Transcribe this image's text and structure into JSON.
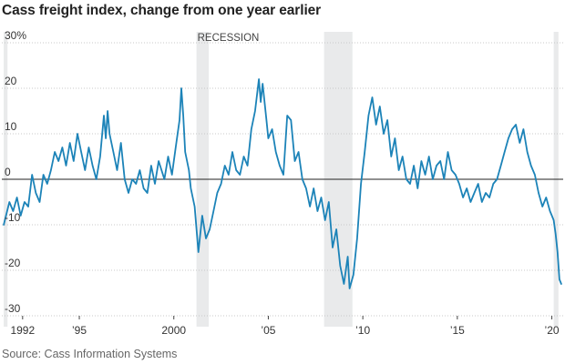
{
  "chart_data": {
    "type": "line",
    "title": "Cass freight index, change from one year earlier",
    "source": "Source: Cass Information Systems",
    "annotation": "RECESSION",
    "xlabel": "",
    "ylabel": "",
    "xlim": [
      1990.9,
      2020.6
    ],
    "ylim": [
      -30,
      30
    ],
    "y_ticks": [
      {
        "value": 30,
        "label": "30%"
      },
      {
        "value": 20,
        "label": "20"
      },
      {
        "value": 10,
        "label": "10"
      },
      {
        "value": 0,
        "label": "0"
      },
      {
        "value": -10,
        "label": "-10"
      },
      {
        "value": -20,
        "label": "-20"
      },
      {
        "value": -30,
        "label": "-30"
      }
    ],
    "x_ticks": [
      {
        "value": 1992,
        "label": "1992"
      },
      {
        "value": 1995,
        "label": "’95"
      },
      {
        "value": 2000,
        "label": "2000"
      },
      {
        "value": 2005,
        "label": "’05"
      },
      {
        "value": 2010,
        "label": "’10"
      },
      {
        "value": 2015,
        "label": "’15"
      },
      {
        "value": 2020,
        "label": "’20"
      }
    ],
    "recessions": [
      {
        "start": 1991.0,
        "end": 1991.2
      },
      {
        "start": 2001.2,
        "end": 2001.85
      },
      {
        "start": 2007.95,
        "end": 2009.45
      },
      {
        "start": 2020.1,
        "end": 2020.35
      }
    ],
    "grid": true,
    "colors": {
      "line": "#1c83b8",
      "recession": "#e9eaeb",
      "grid": "#c8c8c8",
      "zero": "#222222"
    },
    "series": [
      {
        "values": [
          [
            1991.0,
            -10
          ],
          [
            1991.3,
            -5
          ],
          [
            1991.5,
            -7
          ],
          [
            1991.7,
            -4
          ],
          [
            1991.9,
            -8
          ],
          [
            1992.1,
            -5
          ],
          [
            1992.3,
            -6
          ],
          [
            1992.5,
            1
          ],
          [
            1992.7,
            -3
          ],
          [
            1992.9,
            -5
          ],
          [
            1993.1,
            1
          ],
          [
            1993.3,
            -1
          ],
          [
            1993.5,
            2
          ],
          [
            1993.7,
            6
          ],
          [
            1993.9,
            4
          ],
          [
            1994.1,
            7
          ],
          [
            1994.3,
            3
          ],
          [
            1994.5,
            8
          ],
          [
            1994.7,
            4
          ],
          [
            1994.9,
            10
          ],
          [
            1995.1,
            6
          ],
          [
            1995.3,
            2
          ],
          [
            1995.5,
            7
          ],
          [
            1995.7,
            3
          ],
          [
            1995.9,
            0
          ],
          [
            1996.1,
            5
          ],
          [
            1996.3,
            14
          ],
          [
            1996.4,
            9
          ],
          [
            1996.5,
            15
          ],
          [
            1996.6,
            10
          ],
          [
            1996.8,
            6
          ],
          [
            1997.0,
            2
          ],
          [
            1997.2,
            8
          ],
          [
            1997.4,
            0
          ],
          [
            1997.6,
            -3
          ],
          [
            1997.8,
            0
          ],
          [
            1998.0,
            -1
          ],
          [
            1998.2,
            2
          ],
          [
            1998.4,
            -2
          ],
          [
            1998.6,
            -3
          ],
          [
            1998.8,
            3
          ],
          [
            1999.0,
            -1
          ],
          [
            1999.2,
            4
          ],
          [
            1999.5,
            0
          ],
          [
            1999.7,
            5
          ],
          [
            1999.9,
            1
          ],
          [
            2000.1,
            7
          ],
          [
            2000.3,
            13
          ],
          [
            2000.4,
            20
          ],
          [
            2000.5,
            14
          ],
          [
            2000.6,
            6
          ],
          [
            2000.8,
            2
          ],
          [
            2000.9,
            -2
          ],
          [
            2001.1,
            -6
          ],
          [
            2001.3,
            -16
          ],
          [
            2001.5,
            -8
          ],
          [
            2001.7,
            -13
          ],
          [
            2001.9,
            -11
          ],
          [
            2002.1,
            -7
          ],
          [
            2002.3,
            -3
          ],
          [
            2002.5,
            -1
          ],
          [
            2002.7,
            3
          ],
          [
            2002.9,
            1
          ],
          [
            2003.1,
            6
          ],
          [
            2003.3,
            2
          ],
          [
            2003.5,
            1
          ],
          [
            2003.7,
            5
          ],
          [
            2003.9,
            3
          ],
          [
            2004.1,
            11
          ],
          [
            2004.3,
            15
          ],
          [
            2004.5,
            22
          ],
          [
            2004.6,
            17
          ],
          [
            2004.7,
            21
          ],
          [
            2004.9,
            13
          ],
          [
            2005.0,
            9
          ],
          [
            2005.2,
            11
          ],
          [
            2005.4,
            6
          ],
          [
            2005.6,
            3
          ],
          [
            2005.8,
            1
          ],
          [
            2006.0,
            14
          ],
          [
            2006.2,
            13
          ],
          [
            2006.4,
            4
          ],
          [
            2006.6,
            6
          ],
          [
            2006.8,
            0
          ],
          [
            2007.0,
            -2
          ],
          [
            2007.2,
            -6
          ],
          [
            2007.4,
            -2
          ],
          [
            2007.6,
            -7
          ],
          [
            2007.8,
            -4
          ],
          [
            2008.0,
            -9
          ],
          [
            2008.2,
            -5
          ],
          [
            2008.4,
            -15
          ],
          [
            2008.6,
            -11
          ],
          [
            2008.8,
            -19
          ],
          [
            2009.0,
            -23
          ],
          [
            2009.2,
            -17
          ],
          [
            2009.3,
            -24
          ],
          [
            2009.5,
            -21
          ],
          [
            2009.7,
            -13
          ],
          [
            2009.9,
            -1
          ],
          [
            2010.1,
            6
          ],
          [
            2010.3,
            14
          ],
          [
            2010.5,
            18
          ],
          [
            2010.7,
            12
          ],
          [
            2010.9,
            16
          ],
          [
            2011.1,
            10
          ],
          [
            2011.3,
            13
          ],
          [
            2011.5,
            5
          ],
          [
            2011.7,
            9
          ],
          [
            2011.9,
            2
          ],
          [
            2012.1,
            5
          ],
          [
            2012.3,
            0
          ],
          [
            2012.5,
            -1
          ],
          [
            2012.7,
            3
          ],
          [
            2012.9,
            -2
          ],
          [
            2013.1,
            4
          ],
          [
            2013.3,
            1
          ],
          [
            2013.5,
            5
          ],
          [
            2013.7,
            0
          ],
          [
            2013.9,
            3
          ],
          [
            2014.1,
            4
          ],
          [
            2014.3,
            0
          ],
          [
            2014.5,
            6
          ],
          [
            2014.7,
            2
          ],
          [
            2014.9,
            1
          ],
          [
            2015.1,
            -1
          ],
          [
            2015.3,
            -4
          ],
          [
            2015.5,
            -2
          ],
          [
            2015.7,
            -5
          ],
          [
            2015.9,
            -3
          ],
          [
            2016.1,
            -1
          ],
          [
            2016.3,
            -5
          ],
          [
            2016.5,
            -3
          ],
          [
            2016.7,
            -4
          ],
          [
            2016.9,
            -1
          ],
          [
            2017.1,
            0
          ],
          [
            2017.3,
            3
          ],
          [
            2017.5,
            6
          ],
          [
            2017.7,
            9
          ],
          [
            2017.9,
            11
          ],
          [
            2018.1,
            12
          ],
          [
            2018.3,
            8
          ],
          [
            2018.5,
            11
          ],
          [
            2018.7,
            6
          ],
          [
            2018.9,
            3
          ],
          [
            2019.1,
            1
          ],
          [
            2019.3,
            -3
          ],
          [
            2019.5,
            -6
          ],
          [
            2019.7,
            -4
          ],
          [
            2019.9,
            -7
          ],
          [
            2020.0,
            -8
          ],
          [
            2020.1,
            -9
          ],
          [
            2020.2,
            -12
          ],
          [
            2020.3,
            -16
          ],
          [
            2020.4,
            -22
          ],
          [
            2020.5,
            -23
          ]
        ]
      }
    ]
  }
}
